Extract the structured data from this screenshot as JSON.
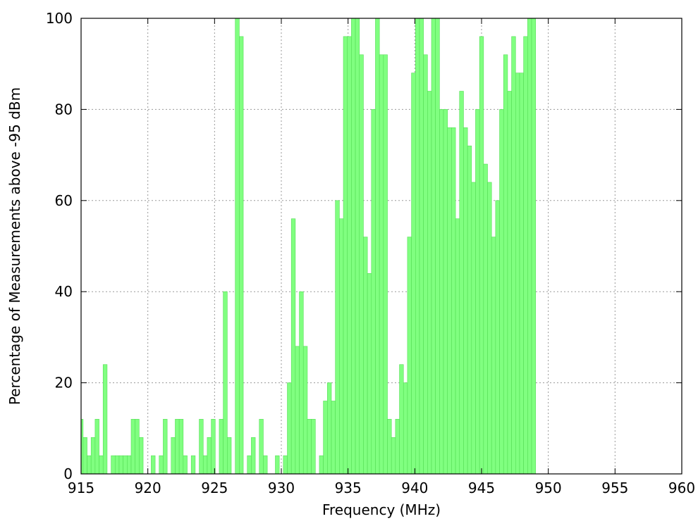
{
  "chart_data": {
    "type": "bar",
    "title": "",
    "xlabel": "Frequency (MHz)",
    "ylabel": "Percentage of Measurements above -95 dBm",
    "xlim": [
      915,
      960
    ],
    "ylim": [
      0,
      100
    ],
    "xticks": [
      915,
      920,
      925,
      930,
      935,
      940,
      945,
      950,
      955,
      960
    ],
    "xtick_labels": [
      "915",
      "920",
      "925",
      "930",
      "935",
      "940",
      "945",
      "950",
      "955",
      "960"
    ],
    "yticks": [
      0,
      20,
      40,
      60,
      80,
      100
    ],
    "ytick_labels": [
      "0",
      "20",
      "40",
      "60",
      "80",
      "100"
    ],
    "grid": true,
    "bar_width_mhz": 0.3,
    "bar_color": "#80ff80",
    "bar_edge_color": "#55dd55",
    "x_start_mhz": 914.85,
    "values": [
      12,
      8,
      4,
      8,
      12,
      4,
      24,
      0,
      4,
      4,
      4,
      4,
      4,
      12,
      12,
      8,
      0,
      0,
      4,
      0,
      4,
      12,
      0,
      8,
      12,
      12,
      4,
      0,
      4,
      0,
      12,
      4,
      8,
      12,
      0,
      12,
      40,
      8,
      0,
      100,
      96,
      0,
      4,
      8,
      0,
      12,
      4,
      0,
      0,
      4,
      0,
      4,
      20,
      56,
      28,
      40,
      28,
      12,
      12,
      0,
      4,
      16,
      20,
      16,
      60,
      56,
      96,
      96,
      100,
      100,
      92,
      52,
      44,
      80,
      100,
      92,
      92,
      12,
      8,
      12,
      24,
      20,
      52,
      88,
      100,
      100,
      92,
      84,
      100,
      100,
      80,
      80,
      76,
      76,
      56,
      84,
      76,
      72,
      64,
      80,
      96,
      68,
      64,
      52,
      60,
      80,
      92,
      84,
      96,
      88,
      88,
      96,
      100,
      100
    ]
  }
}
